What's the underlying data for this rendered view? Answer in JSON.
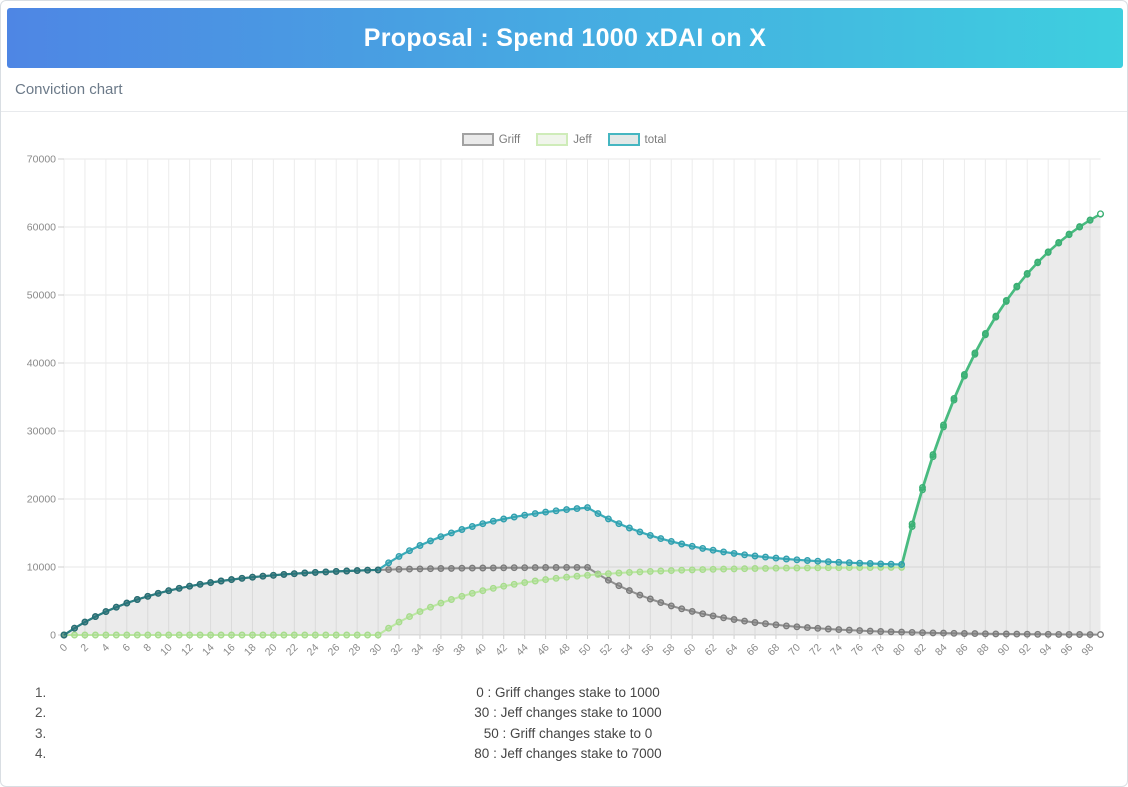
{
  "header": {
    "title": "Proposal : Spend 1000 xDAI on X"
  },
  "card": {
    "header": "Conviction chart"
  },
  "colors": {
    "header_gradient_left": "#4e86e4",
    "header_gradient_right": "#3ecfdf",
    "page_border": "#d9dee3",
    "grid_vertical": "#ececec",
    "grid_horizontal": "#e7e7e7",
    "axis_line": "#d9d9d9",
    "tick_mark": "#cfcfcf",
    "tick_label": "#8a8a8a",
    "area_fill": "rgba(90,90,90,0.12)"
  },
  "chart_data": {
    "type": "line",
    "title": "",
    "xlabel": "",
    "ylabel": "",
    "legend_position": "top-center",
    "grid": true,
    "ylim": [
      0,
      70000
    ],
    "y_tick_step": 10000,
    "y_ticks": [
      0,
      10000,
      20000,
      30000,
      40000,
      50000,
      60000,
      70000
    ],
    "x_tick_step": 2,
    "x": [
      0,
      1,
      2,
      3,
      4,
      5,
      6,
      7,
      8,
      9,
      10,
      11,
      12,
      13,
      14,
      15,
      16,
      17,
      18,
      19,
      20,
      21,
      22,
      23,
      24,
      25,
      26,
      27,
      28,
      29,
      30,
      31,
      32,
      33,
      34,
      35,
      36,
      37,
      38,
      39,
      40,
      41,
      42,
      43,
      44,
      45,
      46,
      47,
      48,
      49,
      50,
      51,
      52,
      53,
      54,
      55,
      56,
      57,
      58,
      59,
      60,
      61,
      62,
      63,
      64,
      65,
      66,
      67,
      68,
      69,
      70,
      71,
      72,
      73,
      74,
      75,
      76,
      77,
      78,
      79,
      80,
      81,
      82,
      83,
      84,
      85,
      86,
      87,
      88,
      89,
      90,
      91,
      92,
      93,
      94,
      95,
      96,
      97,
      98,
      99
    ],
    "series": [
      {
        "name": "Griff",
        "legend_fill": "#eaeaea",
        "legend_border": "#a2a2a2",
        "line_width": 2,
        "color_stops": [
          {
            "upto": 99,
            "line": "#8f8f8f",
            "marker": "#7a7a7a"
          }
        ],
        "values": [
          0,
          1000,
          1900,
          2710,
          3439,
          4095,
          4686,
          5217,
          5695,
          6126,
          6513,
          6862,
          7176,
          7458,
          7712,
          7941,
          8147,
          8332,
          8499,
          8649,
          8784,
          8906,
          9015,
          9114,
          9202,
          9282,
          9354,
          9419,
          9477,
          9529,
          9576,
          9618,
          9657,
          9691,
          9722,
          9750,
          9775,
          9797,
          9818,
          9836,
          9852,
          9867,
          9880,
          9892,
          9903,
          9913,
          9921,
          9929,
          9936,
          9943,
          9948,
          8954,
          8058,
          7252,
          6527,
          5874,
          5287,
          4758,
          4282,
          3854,
          3469,
          3122,
          2810,
          2529,
          2276,
          2048,
          1843,
          1659,
          1493,
          1344,
          1209,
          1089,
          980,
          882,
          794,
          714,
          643,
          578,
          521,
          469,
          422,
          380,
          342,
          307,
          277,
          249,
          224,
          202,
          182,
          163,
          147,
          132,
          119,
          107,
          96,
          87,
          78,
          70,
          63,
          57
        ]
      },
      {
        "name": "Jeff",
        "legend_fill": "#f0f5eb",
        "legend_border": "#cfecb9",
        "line_width": 2,
        "color_stops": [
          {
            "upto": 80,
            "line": "#bce7a3",
            "marker": "#a6dc8b"
          },
          {
            "upto": 99,
            "line": "#49bb80",
            "marker": "#3aaf73"
          }
        ],
        "values": [
          0,
          0,
          0,
          0,
          0,
          0,
          0,
          0,
          0,
          0,
          0,
          0,
          0,
          0,
          0,
          0,
          0,
          0,
          0,
          0,
          0,
          0,
          0,
          0,
          0,
          0,
          0,
          0,
          0,
          0,
          0,
          1000,
          1900,
          2710,
          3439,
          4095,
          4686,
          5217,
          5695,
          6126,
          6513,
          6862,
          7176,
          7458,
          7712,
          7941,
          8147,
          8332,
          8499,
          8649,
          8784,
          8906,
          9015,
          9114,
          9202,
          9282,
          9354,
          9419,
          9477,
          9529,
          9576,
          9618,
          9657,
          9691,
          9722,
          9750,
          9775,
          9797,
          9818,
          9836,
          9852,
          9867,
          9880,
          9892,
          9903,
          9913,
          9921,
          9929,
          9936,
          9943,
          9948,
          15954,
          21358,
          26222,
          30600,
          34540,
          38086,
          41278,
          44150,
          46735,
          49061,
          51155,
          53040,
          54736,
          56262,
          57636,
          58872,
          59985,
          60987,
          61888
        ]
      },
      {
        "name": "total",
        "legend_fill": "#e2e8e7",
        "legend_border": "#45b6c1",
        "line_width": 2.2,
        "area": true,
        "color_stops": [
          {
            "upto": 30,
            "line": "#2b7e82",
            "marker": "#266f75"
          },
          {
            "upto": 80,
            "line": "#3aacba",
            "marker": "#2f9fae"
          },
          {
            "upto": 99,
            "line": "#49bb80",
            "marker": "#3aaf73"
          }
        ],
        "values": [
          0,
          1000,
          1900,
          2710,
          3439,
          4095,
          4686,
          5217,
          5695,
          6126,
          6513,
          6862,
          7176,
          7458,
          7712,
          7941,
          8147,
          8332,
          8499,
          8649,
          8784,
          8906,
          9015,
          9114,
          9202,
          9282,
          9354,
          9419,
          9477,
          9529,
          9576,
          10618,
          11557,
          12401,
          13161,
          13845,
          14461,
          15014,
          15513,
          15962,
          16365,
          16729,
          17056,
          17350,
          17615,
          17854,
          18068,
          18261,
          18435,
          18592,
          18732,
          17859,
          17073,
          16366,
          15729,
          15156,
          14641,
          14177,
          13759,
          13383,
          13045,
          12740,
          12466,
          12220,
          11998,
          11798,
          11618,
          11456,
          11311,
          11180,
          11062,
          10956,
          10860,
          10774,
          10697,
          10627,
          10564,
          10508,
          10457,
          10411,
          10370,
          16333,
          21700,
          26530,
          30877,
          34789,
          38310,
          41479,
          44331,
          46898,
          49208,
          51287,
          53159,
          54843,
          56359,
          57723,
          58950,
          60055,
          61050,
          61945
        ]
      }
    ]
  },
  "annotations": {
    "items": [
      {
        "marker": "1.",
        "text": "0 : Griff changes stake to 1000"
      },
      {
        "marker": "2.",
        "text": "30 : Jeff changes stake to 1000"
      },
      {
        "marker": "3.",
        "text": "50 : Griff changes stake to 0"
      },
      {
        "marker": "4.",
        "text": "80 : Jeff changes stake to 7000"
      }
    ]
  }
}
